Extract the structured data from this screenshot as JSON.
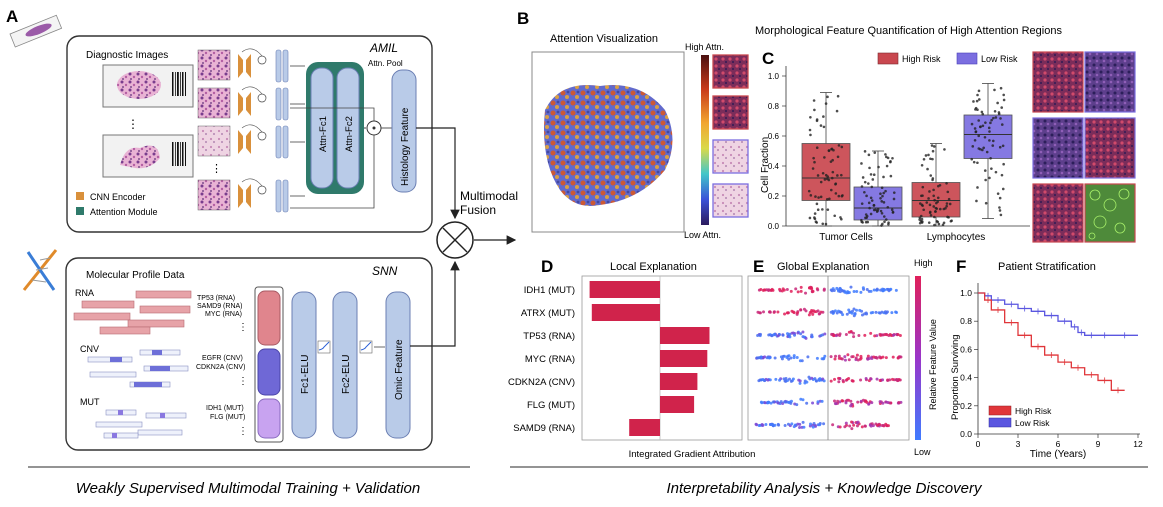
{
  "panels": {
    "A": "A",
    "B": "B",
    "C": "C",
    "D": "D",
    "E": "E",
    "F": "F"
  },
  "amil": {
    "title": "AMIL",
    "diagnostic_images": "Diagnostic Images",
    "ellipsis": "⋮",
    "attn_fc1": "Attn-Fc1",
    "attn_fc2": "Attn-Fc2",
    "attn_pool": "Attn. Pool",
    "histology_feature": "Histology Feature",
    "legend_cnn": "CNN Encoder",
    "legend_attention": "Attention Module",
    "color_cnn": "#d9903b",
    "color_attention": "#2f7a6b",
    "color_block": "#b9cbe8"
  },
  "fusion": {
    "label_line1": "Multimodal",
    "label_line2": "Fusion",
    "symbol": "⊗"
  },
  "snn": {
    "title": "SNN",
    "molecular_profile": "Molecular Profile Data",
    "rna": "RNA",
    "cnv": "CNV",
    "mut": "MUT",
    "rna_genes": [
      "TP53 (RNA)",
      "SAMD9 (RNA)",
      "MYC (RNA)"
    ],
    "cnv_genes": [
      "EGFR (CNV)",
      "CDKN2A (CNV)"
    ],
    "mut_genes": [
      "IDH1 (MUT)",
      "FLG (MUT)"
    ],
    "ellipsis": "⋮",
    "fc1": "Fc1-ELU",
    "fc2": "Fc2-ELU",
    "omic_feature": "Omic Feature"
  },
  "footer": {
    "left": "Weakly Supervised Multimodal Training + Validation",
    "right": "Interpretability Analysis + Knowledge Discovery"
  },
  "panel_b": {
    "title": "Attention Visualization",
    "high": "High Attn.",
    "low": "Low Attn."
  },
  "panel_c": {
    "title": "Morphological Feature Quantification of High Attention Regions",
    "legend_high": "High Risk",
    "legend_low": "Low Risk",
    "color_high": "#c9474f",
    "color_low": "#7b6ee0",
    "chart_data": {
      "type": "box",
      "ylabel": "Cell Fraction",
      "ylim": [
        0,
        1.0
      ],
      "yticks": [
        "0.0",
        "0.2",
        "0.4",
        "0.6",
        "0.8",
        "1.0"
      ],
      "categories": [
        "Tumor Cells",
        "Lymphocytes"
      ],
      "series": [
        {
          "name": "High Risk",
          "boxes": [
            {
              "category": "Tumor Cells",
              "q1": 0.17,
              "median": 0.32,
              "q3": 0.55,
              "min": 0.0,
              "max": 0.89
            },
            {
              "category": "Lymphocytes",
              "q1": 0.06,
              "median": 0.17,
              "q3": 0.29,
              "min": 0.0,
              "max": 0.55
            }
          ]
        },
        {
          "name": "Low Risk",
          "boxes": [
            {
              "category": "Tumor Cells",
              "q1": 0.04,
              "median": 0.12,
              "q3": 0.26,
              "min": 0.0,
              "max": 0.5
            },
            {
              "category": "Lymphocytes",
              "q1": 0.45,
              "median": 0.61,
              "q3": 0.74,
              "min": 0.05,
              "max": 0.95
            }
          ]
        }
      ]
    }
  },
  "panel_d": {
    "title": "Local Explanation",
    "xlabel": "Integrated Gradient Attribution",
    "color": "#d0234b",
    "chart_data": {
      "type": "bar",
      "orientation": "horizontal",
      "categories": [
        "IDH1 (MUT)",
        "ATRX (MUT)",
        "TP53 (RNA)",
        "MYC (RNA)",
        "CDKN2A (CNV)",
        "FLG (MUT)",
        "SAMD9 (RNA)"
      ],
      "values": [
        -0.64,
        -0.62,
        0.45,
        0.43,
        0.34,
        0.31,
        -0.28
      ]
    }
  },
  "panel_e": {
    "title": "Global Explanation",
    "high": "High",
    "low": "Low",
    "cbar_label": "Relative Feature Value"
  },
  "panel_f": {
    "title": "Patient Stratification",
    "ylabel": "Proportion Surviving",
    "xlabel": "Time (Years)",
    "legend_high": "High Risk",
    "legend_low": "Low Risk",
    "color_high": "#e0363a",
    "color_low": "#5a56e0",
    "chart_data": {
      "type": "line",
      "xlim": [
        0,
        12
      ],
      "ylim": [
        0,
        1.0
      ],
      "xticks": [
        "0",
        "3",
        "6",
        "9",
        "12"
      ],
      "yticks": [
        "0.0",
        "0.2",
        "0.4",
        "0.6",
        "0.8",
        "1.0"
      ],
      "series": [
        {
          "name": "Low Risk",
          "x": [
            0,
            0.5,
            1,
            2,
            3,
            4,
            5,
            6,
            7,
            7.5,
            8,
            9,
            10,
            12
          ],
          "y": [
            1.0,
            0.98,
            0.95,
            0.92,
            0.89,
            0.87,
            0.84,
            0.8,
            0.76,
            0.72,
            0.7,
            0.7,
            0.7,
            0.7
          ]
        },
        {
          "name": "High Risk",
          "x": [
            0,
            0.5,
            1,
            2,
            3,
            4,
            5,
            6,
            7,
            8,
            9,
            10,
            11
          ],
          "y": [
            1.0,
            0.95,
            0.88,
            0.79,
            0.7,
            0.62,
            0.56,
            0.51,
            0.47,
            0.42,
            0.38,
            0.31,
            0.31
          ]
        }
      ]
    }
  }
}
